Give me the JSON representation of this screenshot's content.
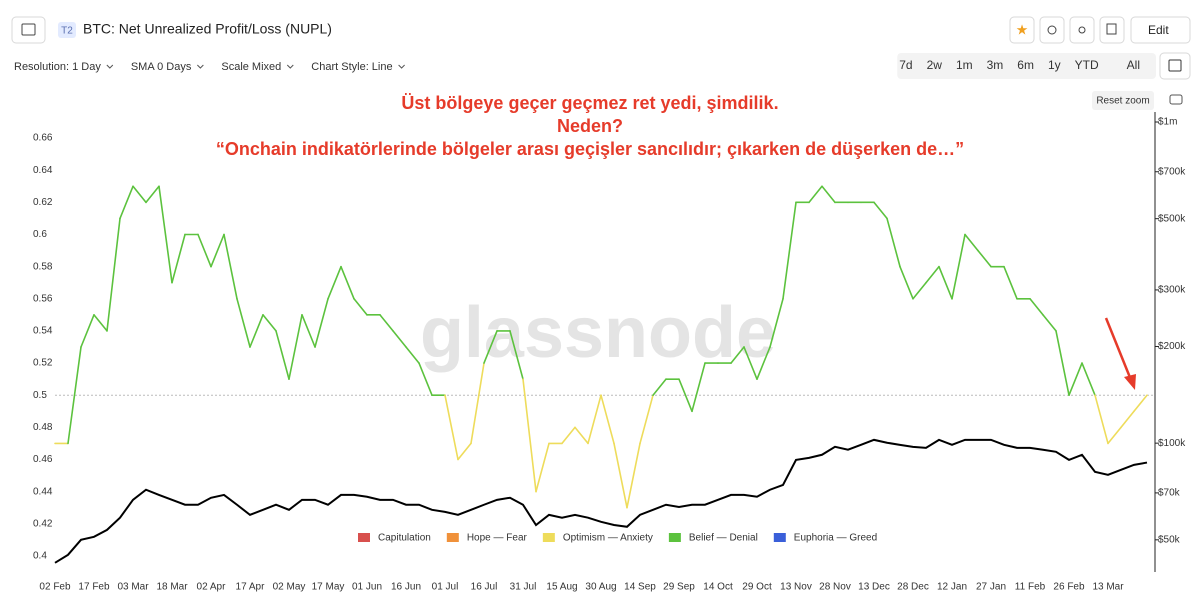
{
  "toolbar": {
    "badge": "T2",
    "title": "BTC: Net Unrealized Profit/Loss (NUPL)",
    "edit": "Edit"
  },
  "controls": [
    "Resolution: 1 Day",
    "SMA 0 Days",
    "Scale Mixed",
    "Chart Style: Line"
  ],
  "ranges": [
    "7d",
    "2w",
    "1m",
    "3m",
    "6m",
    "1y",
    "YTD",
    "All"
  ],
  "reset_zoom": "Reset zoom",
  "chart_data": {
    "type": "line",
    "annotation": [
      "Üst bölgeye geçer geçmez ret yedi, şimdilik.",
      "Neden?",
      "“Onchain indikatörlerinde bölgeler arası geçişler sancılıdır; çıkarken de düşerken de…”"
    ],
    "watermark": "glassnode",
    "x_tick_labels": [
      "02 Feb",
      "17 Feb",
      "03 Mar",
      "18 Mar",
      "02 Apr",
      "17 Apr",
      "02 May",
      "17 May",
      "01 Jun",
      "16 Jun",
      "01 Jul",
      "16 Jul",
      "31 Jul",
      "15 Aug",
      "30 Aug",
      "14 Sep",
      "29 Sep",
      "14 Oct",
      "29 Oct",
      "13 Nov",
      "28 Nov",
      "13 Dec",
      "28 Dec",
      "12 Jan",
      "27 Jan",
      "11 Feb",
      "26 Feb",
      "13 Mar"
    ],
    "ylim": [
      0.39,
      0.67
    ],
    "yticks": [
      0.4,
      0.42,
      0.44,
      0.46,
      0.48,
      0.5,
      0.52,
      0.54,
      0.56,
      0.58,
      0.6,
      0.62,
      0.64,
      0.66
    ],
    "y2lim": [
      39700,
      1000000
    ],
    "y2_log": true,
    "y2ticks": [
      {
        "value": 50000,
        "label": "$50k"
      },
      {
        "value": 70000,
        "label": "$70k"
      },
      {
        "value": 100000,
        "label": "$100k"
      },
      {
        "value": 200000,
        "label": "$200k"
      },
      {
        "value": 300000,
        "label": "$300k"
      },
      {
        "value": 500000,
        "label": "$500k"
      },
      {
        "value": 700000,
        "label": "$700k"
      },
      {
        "value": 1000000,
        "label": "$1m"
      }
    ],
    "reference_line": 0.5,
    "zones": [
      {
        "name": "Capitulation",
        "color": "#d8504d"
      },
      {
        "name": "Hope — Fear",
        "color": "#f0913a"
      },
      {
        "name": "Optimism — Anxiety",
        "color": "#eedc5b"
      },
      {
        "name": "Belief — Denial",
        "color": "#5cc23e"
      },
      {
        "name": "Euphoria — Greed",
        "color": "#3a5fd9"
      }
    ],
    "series": [
      {
        "color_by_zone": true,
        "values": [
          0.47,
          0.47,
          0.53,
          0.55,
          0.54,
          0.61,
          0.63,
          0.62,
          0.63,
          0.57,
          0.6,
          0.6,
          0.58,
          0.6,
          0.56,
          0.53,
          0.55,
          0.54,
          0.51,
          0.55,
          0.53,
          0.56,
          0.58,
          0.56,
          0.55,
          0.55,
          0.54,
          0.53,
          0.52,
          0.5,
          0.5,
          0.46,
          0.47,
          0.52,
          0.54,
          0.54,
          0.51,
          0.44,
          0.47,
          0.47,
          0.48,
          0.47,
          0.5,
          0.47,
          0.43,
          0.47,
          0.5,
          0.51,
          0.51,
          0.49,
          0.52,
          0.52,
          0.52,
          0.53,
          0.51,
          0.53,
          0.56,
          0.62,
          0.62,
          0.63,
          0.62,
          0.62,
          0.62,
          0.62,
          0.61,
          0.58,
          0.56,
          0.57,
          0.58,
          0.56,
          0.6,
          0.59,
          0.58,
          0.58,
          0.56,
          0.56,
          0.55,
          0.54,
          0.5,
          0.52,
          0.5,
          0.47,
          0.48,
          0.49,
          0.5
        ]
      },
      {
        "axis": "y2",
        "color": "#000000",
        "values": [
          42400,
          44900,
          50000,
          51100,
          53700,
          58600,
          66600,
          71600,
          69000,
          66600,
          64300,
          64300,
          67600,
          69000,
          64300,
          59800,
          62000,
          64300,
          62000,
          66600,
          66600,
          64300,
          69000,
          69000,
          68100,
          66600,
          66600,
          64300,
          64300,
          62000,
          61100,
          59800,
          62000,
          64300,
          66600,
          67600,
          64300,
          55600,
          59800,
          58600,
          59800,
          58600,
          56900,
          55600,
          54900,
          59800,
          62000,
          64300,
          63300,
          64300,
          64300,
          66600,
          69000,
          69000,
          68100,
          71600,
          74100,
          88700,
          90000,
          92000,
          97400,
          95400,
          98800,
          102400,
          100300,
          98800,
          97400,
          96700,
          102400,
          98800,
          102400,
          102400,
          102400,
          98800,
          96700,
          96700,
          95400,
          94000,
          88700,
          92000,
          81400,
          79700,
          82600,
          85600,
          87000
        ]
      }
    ]
  }
}
